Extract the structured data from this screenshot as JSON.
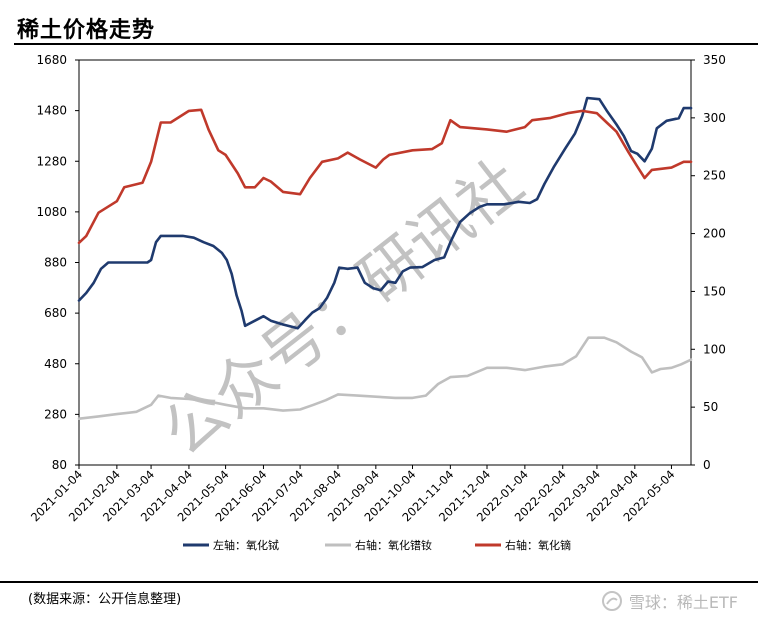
{
  "title": "稀土价格走势",
  "source": "(数据来源：公开信息整理)",
  "footer": {
    "brand": "雪球：稀土ETF",
    "icon": "snowball-logo-icon"
  },
  "chart_data": {
    "type": "line",
    "title": "稀土价格走势",
    "x_range": [
      "2021-01-04",
      "2022-05-20"
    ],
    "x_ticks": [
      "2021-01-04",
      "2021-02-04",
      "2021-03-04",
      "2021-04-04",
      "2021-05-04",
      "2021-06-04",
      "2021-07-04",
      "2021-08-04",
      "2021-09-04",
      "2021-10-04",
      "2021-11-04",
      "2021-12-04",
      "2022-01-04",
      "2022-02-04",
      "2022-03-04",
      "2022-04-04",
      "2022-05-04"
    ],
    "y_left": {
      "range": [
        80,
        1680
      ],
      "ticks": [
        80,
        280,
        480,
        680,
        880,
        1080,
        1280,
        1480,
        1680
      ]
    },
    "y_right": {
      "range": [
        0,
        350
      ],
      "ticks": [
        0,
        50,
        100,
        150,
        200,
        250,
        300,
        350
      ]
    },
    "legend_position": "bottom",
    "grid": false,
    "series": [
      {
        "name": "左轴：氧化铽",
        "axis": "left",
        "color": "#1f3a6e",
        "points": [
          [
            "2021-01-04",
            730
          ],
          [
            "2021-01-10",
            760
          ],
          [
            "2021-01-16",
            800
          ],
          [
            "2021-01-22",
            855
          ],
          [
            "2021-01-28",
            880
          ],
          [
            "2021-02-15",
            880
          ],
          [
            "2021-03-01",
            880
          ],
          [
            "2021-03-04",
            890
          ],
          [
            "2021-03-08",
            960
          ],
          [
            "2021-03-12",
            985
          ],
          [
            "2021-03-30",
            985
          ],
          [
            "2021-04-08",
            978
          ],
          [
            "2021-04-16",
            960
          ],
          [
            "2021-04-24",
            945
          ],
          [
            "2021-05-01",
            918
          ],
          [
            "2021-05-05",
            890
          ],
          [
            "2021-05-09",
            835
          ],
          [
            "2021-05-13",
            750
          ],
          [
            "2021-05-17",
            690
          ],
          [
            "2021-05-20",
            630
          ],
          [
            "2021-05-28",
            650
          ],
          [
            "2021-06-04",
            668
          ],
          [
            "2021-06-10",
            650
          ],
          [
            "2021-06-20",
            635
          ],
          [
            "2021-07-02",
            620
          ],
          [
            "2021-07-08",
            652
          ],
          [
            "2021-07-14",
            682
          ],
          [
            "2021-07-20",
            700
          ],
          [
            "2021-07-26",
            740
          ],
          [
            "2021-08-01",
            800
          ],
          [
            "2021-08-05",
            860
          ],
          [
            "2021-08-12",
            855
          ],
          [
            "2021-08-20",
            860
          ],
          [
            "2021-08-26",
            800
          ],
          [
            "2021-09-02",
            778
          ],
          [
            "2021-09-08",
            770
          ],
          [
            "2021-09-14",
            805
          ],
          [
            "2021-09-20",
            800
          ],
          [
            "2021-09-26",
            845
          ],
          [
            "2021-10-02",
            860
          ],
          [
            "2021-10-12",
            862
          ],
          [
            "2021-10-22",
            890
          ],
          [
            "2021-10-30",
            900
          ],
          [
            "2021-11-04",
            960
          ],
          [
            "2021-11-12",
            1040
          ],
          [
            "2021-11-20",
            1075
          ],
          [
            "2021-11-28",
            1100
          ],
          [
            "2021-12-04",
            1110
          ],
          [
            "2021-12-18",
            1110
          ],
          [
            "2021-12-30",
            1120
          ],
          [
            "2022-01-08",
            1115
          ],
          [
            "2022-01-14",
            1130
          ],
          [
            "2022-01-20",
            1190
          ],
          [
            "2022-01-28",
            1260
          ],
          [
            "2022-02-06",
            1330
          ],
          [
            "2022-02-14",
            1390
          ],
          [
            "2022-02-20",
            1460
          ],
          [
            "2022-02-24",
            1530
          ],
          [
            "2022-03-06",
            1525
          ],
          [
            "2022-03-12",
            1480
          ],
          [
            "2022-03-20",
            1425
          ],
          [
            "2022-03-26",
            1380
          ],
          [
            "2022-04-01",
            1320
          ],
          [
            "2022-04-06",
            1310
          ],
          [
            "2022-04-12",
            1280
          ],
          [
            "2022-04-18",
            1330
          ],
          [
            "2022-04-22",
            1410
          ],
          [
            "2022-04-30",
            1440
          ],
          [
            "2022-05-10",
            1450
          ],
          [
            "2022-05-14",
            1490
          ],
          [
            "2022-05-20",
            1490
          ]
        ]
      },
      {
        "name": "右轴：氧化镨钕",
        "axis": "right",
        "color": "#bfbfbf",
        "points": [
          [
            "2021-01-04",
            40
          ],
          [
            "2021-01-20",
            42
          ],
          [
            "2021-02-04",
            44
          ],
          [
            "2021-02-20",
            46
          ],
          [
            "2021-03-04",
            52
          ],
          [
            "2021-03-10",
            60
          ],
          [
            "2021-03-20",
            58
          ],
          [
            "2021-04-04",
            57
          ],
          [
            "2021-04-20",
            55
          ],
          [
            "2021-05-04",
            52
          ],
          [
            "2021-05-20",
            49
          ],
          [
            "2021-06-04",
            49
          ],
          [
            "2021-06-20",
            47
          ],
          [
            "2021-07-04",
            48
          ],
          [
            "2021-07-15",
            52
          ],
          [
            "2021-07-25",
            56
          ],
          [
            "2021-08-04",
            61
          ],
          [
            "2021-08-20",
            60
          ],
          [
            "2021-09-04",
            59
          ],
          [
            "2021-09-20",
            58
          ],
          [
            "2021-10-04",
            58
          ],
          [
            "2021-10-15",
            60
          ],
          [
            "2021-10-25",
            70
          ],
          [
            "2021-11-04",
            76
          ],
          [
            "2021-11-18",
            77
          ],
          [
            "2021-12-04",
            84
          ],
          [
            "2021-12-20",
            84
          ],
          [
            "2022-01-04",
            82
          ],
          [
            "2022-01-20",
            85
          ],
          [
            "2022-02-04",
            87
          ],
          [
            "2022-02-15",
            94
          ],
          [
            "2022-02-25",
            110
          ],
          [
            "2022-03-10",
            110
          ],
          [
            "2022-03-20",
            106
          ],
          [
            "2022-04-01",
            98
          ],
          [
            "2022-04-10",
            93
          ],
          [
            "2022-04-18",
            80
          ],
          [
            "2022-04-25",
            83
          ],
          [
            "2022-05-04",
            84
          ],
          [
            "2022-05-12",
            87
          ],
          [
            "2022-05-20",
            91
          ]
        ]
      },
      {
        "name": "右轴：氧化镝",
        "axis": "right",
        "color": "#c0392b",
        "points": [
          [
            "2021-01-04",
            192
          ],
          [
            "2021-01-10",
            198
          ],
          [
            "2021-01-20",
            218
          ],
          [
            "2021-02-04",
            228
          ],
          [
            "2021-02-10",
            240
          ],
          [
            "2021-02-25",
            244
          ],
          [
            "2021-03-04",
            262
          ],
          [
            "2021-03-12",
            296
          ],
          [
            "2021-03-20",
            296
          ],
          [
            "2021-04-04",
            306
          ],
          [
            "2021-04-14",
            307
          ],
          [
            "2021-04-20",
            290
          ],
          [
            "2021-04-28",
            272
          ],
          [
            "2021-05-04",
            268
          ],
          [
            "2021-05-14",
            252
          ],
          [
            "2021-05-20",
            240
          ],
          [
            "2021-05-28",
            240
          ],
          [
            "2021-06-04",
            248
          ],
          [
            "2021-06-10",
            245
          ],
          [
            "2021-06-20",
            236
          ],
          [
            "2021-07-04",
            234
          ],
          [
            "2021-07-12",
            248
          ],
          [
            "2021-07-22",
            262
          ],
          [
            "2021-08-04",
            265
          ],
          [
            "2021-08-12",
            270
          ],
          [
            "2021-08-22",
            264
          ],
          [
            "2021-09-04",
            257
          ],
          [
            "2021-09-10",
            264
          ],
          [
            "2021-09-15",
            268
          ],
          [
            "2021-10-04",
            272
          ],
          [
            "2021-10-20",
            273
          ],
          [
            "2021-10-28",
            278
          ],
          [
            "2021-11-04",
            298
          ],
          [
            "2021-11-12",
            292
          ],
          [
            "2021-12-04",
            290
          ],
          [
            "2021-12-20",
            288
          ],
          [
            "2022-01-04",
            292
          ],
          [
            "2022-01-10",
            298
          ],
          [
            "2022-01-25",
            300
          ],
          [
            "2022-02-08",
            304
          ],
          [
            "2022-02-20",
            306
          ],
          [
            "2022-03-04",
            304
          ],
          [
            "2022-03-12",
            296
          ],
          [
            "2022-03-20",
            288
          ],
          [
            "2022-03-30",
            270
          ],
          [
            "2022-04-06",
            258
          ],
          [
            "2022-04-12",
            248
          ],
          [
            "2022-04-18",
            255
          ],
          [
            "2022-05-04",
            257
          ],
          [
            "2022-05-14",
            262
          ],
          [
            "2022-05-20",
            262
          ]
        ]
      }
    ]
  },
  "watermark": "公众号：研讯社"
}
